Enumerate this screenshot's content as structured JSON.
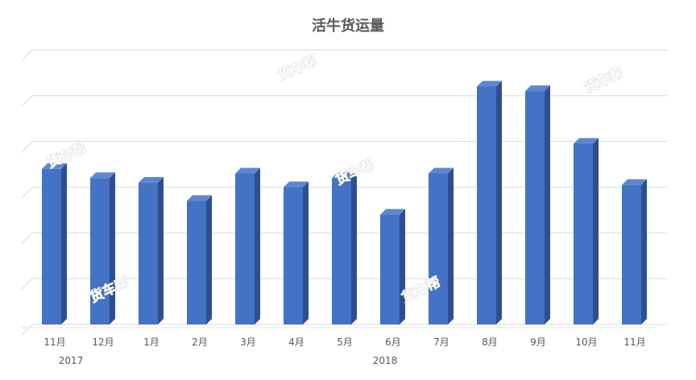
{
  "chart_data": {
    "type": "bar",
    "title": "活牛货运量",
    "categories": [
      "11月",
      "12月",
      "1月",
      "2月",
      "3月",
      "4月",
      "5月",
      "6月",
      "7月",
      "8月",
      "9月",
      "10月",
      "11月"
    ],
    "year_labels": [
      "2017",
      "2018"
    ],
    "series": [
      {
        "values": [
          3.4,
          3.2,
          3.1,
          2.7,
          3.3,
          3.0,
          3.2,
          2.4,
          3.3,
          5.2,
          5.1,
          3.95,
          3.05
        ]
      }
    ],
    "ylim": [
      0,
      6
    ],
    "y_tick_labels_shown": false,
    "grid": true,
    "legend": "none",
    "bar_color": "#4472c4",
    "bar_side_color": "#2e4f8f",
    "bar_top_color": "#5f86cf"
  },
  "watermark": "货车帮"
}
